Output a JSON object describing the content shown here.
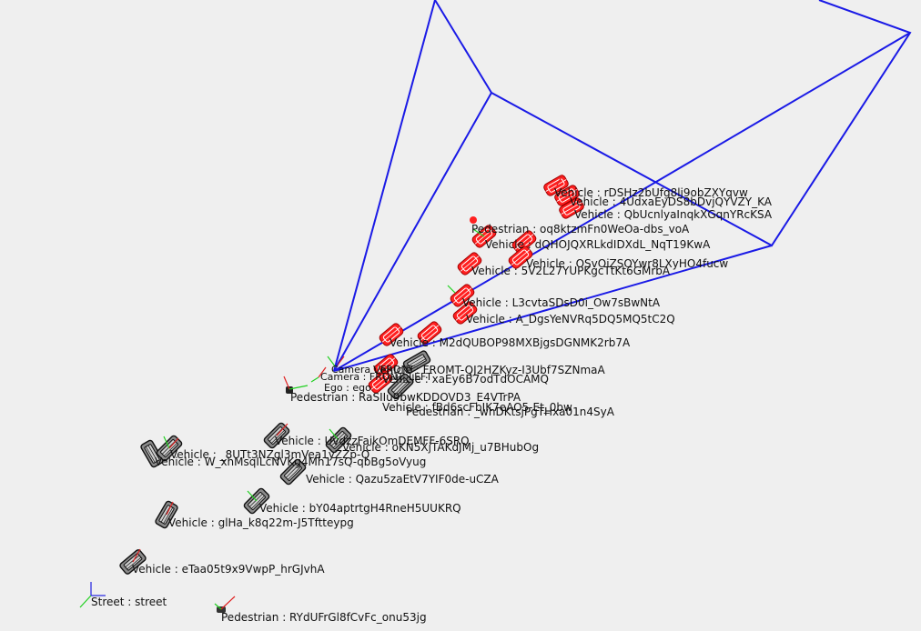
{
  "colors": {
    "background": "#efefef",
    "frustum": "#1a1ae6",
    "vehicle_near": "#ff1a1a",
    "vehicle_far": "#666666",
    "axis_x": "#e02020",
    "axis_y": "#20d020",
    "axis_z": "#2020e0"
  },
  "objects": {
    "v01": {
      "label": "Vehicle : rDSHz2bUfg8lj9obZXYqvw",
      "kind": "vehicle",
      "near": true
    },
    "v02": {
      "label": "Vehicle : 4UdxaEyDS8bDvjQYVZY_KA",
      "kind": "vehicle",
      "near": true
    },
    "v03": {
      "label": "Vehicle : QbUcnlyaInqkXGqnYRcKSA",
      "kind": "vehicle",
      "near": true
    },
    "p01": {
      "label": "Pedestrian : oq8ktzmFn0WeOa-dbs_voA",
      "kind": "pedestrian",
      "near": true
    },
    "v04": {
      "label": "Vehicle : dQHOJQXRLkdIDXdL_NqT19KwA",
      "kind": "vehicle",
      "near": true
    },
    "v05": {
      "label": "Vehicle : OSvOiZSOYwr8LXyHO4fucw",
      "kind": "vehicle",
      "near": true
    },
    "v06": {
      "label": "Vehicle : 5V2L27YUPKgcTtKt6GMrbA",
      "kind": "vehicle",
      "near": true
    },
    "v07": {
      "label": "Vehicle : L3cvtaSDsD0i_Ow7sBwNtA",
      "kind": "vehicle",
      "near": true
    },
    "v08": {
      "label": "Vehicle : A_DgsYeNVRq5DQ5MQ5tC2Q",
      "kind": "vehicle",
      "near": true
    },
    "v09": {
      "label": "Vehicle : M2dQUBOP98MXBjgsDGNMK2rb7A",
      "kind": "vehicle",
      "near": true
    },
    "c01": {
      "label": "Camera : FRONT",
      "kind": "camera"
    },
    "c02": {
      "label": "Camera : FRONT_LEFT",
      "kind": "camera"
    },
    "e01": {
      "label": "Ego : ego",
      "kind": "ego"
    },
    "v10": {
      "label": "Vehicle : FROMT-QJ2HZKyz-I3Ubf7SZNmaA",
      "kind": "vehicle",
      "near": false
    },
    "v11": {
      "label": "Vehicle : xaEy6B7odTdOCAMQ",
      "kind": "vehicle",
      "near": false
    },
    "p02": {
      "label": "Pedestrian : RaSIIu9bwKDDOVD3_E4VTrPA",
      "kind": "pedestrian",
      "near": false
    },
    "v12": {
      "label": "Vehicle : fBd6scFbIK7eAO5-Et_0bw",
      "kind": "vehicle",
      "near": false
    },
    "p03": {
      "label": "Pedestrian : _whDKtsjPgTHxa01n4SyA",
      "kind": "pedestrian",
      "near": false
    },
    "v13": {
      "label": "Vehicle : UvdzzFaikOmDEMFF-6SRQ",
      "kind": "vehicle",
      "near": false
    },
    "v14": {
      "label": "Vehicle : oKN5XjTAKdJMj_u7BHubOg",
      "kind": "vehicle",
      "near": false
    },
    "v15": {
      "label": "Vehicle : _8UTt3NZgl3mVea1yZZp-Q",
      "kind": "vehicle",
      "near": false
    },
    "v16": {
      "label": "Vehicle : W_xhMsqILcNVKg4Mh17sQ-qbBg5oVyug",
      "kind": "vehicle",
      "near": false
    },
    "v17": {
      "label": "Vehicle : Qazu5zaEtV7YIF0de-uCZA",
      "kind": "vehicle",
      "near": false
    },
    "v18": {
      "label": "Vehicle : bY04aptrtgH4RneH5UUKRQ",
      "kind": "vehicle",
      "near": false
    },
    "v19": {
      "label": "Vehicle : glHa_k8q22m-J5Tftteypg",
      "kind": "vehicle",
      "near": false
    },
    "v20": {
      "label": "Vehicle : eTaa05t9x9VwpP_hrGJvhA",
      "kind": "vehicle",
      "near": false
    },
    "s01": {
      "label": "Street : street",
      "kind": "street"
    },
    "p04": {
      "label": "Pedestrian : RYdUFrGl8fCvFc_onu53jg",
      "kind": "pedestrian",
      "near": false
    }
  }
}
